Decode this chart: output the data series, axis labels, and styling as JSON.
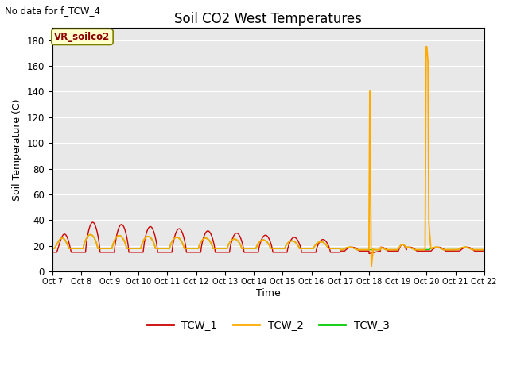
{
  "title": "Soil CO2 West Temperatures",
  "subtitle": "No data for f_TCW_4",
  "ylabel": "Soil Temperature (C)",
  "xlabel": "Time",
  "annotation": "VR_soilco2",
  "ylim": [
    0,
    190
  ],
  "yticks": [
    0,
    20,
    40,
    60,
    80,
    100,
    120,
    140,
    160,
    180
  ],
  "xtick_labels": [
    "Oct 7",
    "Oct 8",
    "Oct 9",
    "Oct 10",
    "Oct 11",
    "Oct 12",
    "Oct 13",
    "Oct 14",
    "Oct 15",
    "Oct 16",
    "Oct 17",
    "Oct 18",
    "Oct 19",
    "Oct 20",
    "Oct 21",
    "Oct 22"
  ],
  "bg_color": "#e8e8e8",
  "line_colors": {
    "TCW_1": "#cc0000",
    "TCW_2": "#ffaa00",
    "TCW_3": "#00cc00"
  },
  "legend_entries": [
    "TCW_1",
    "TCW_2",
    "TCW_3"
  ],
  "figsize": [
    6.4,
    4.8
  ],
  "dpi": 100
}
